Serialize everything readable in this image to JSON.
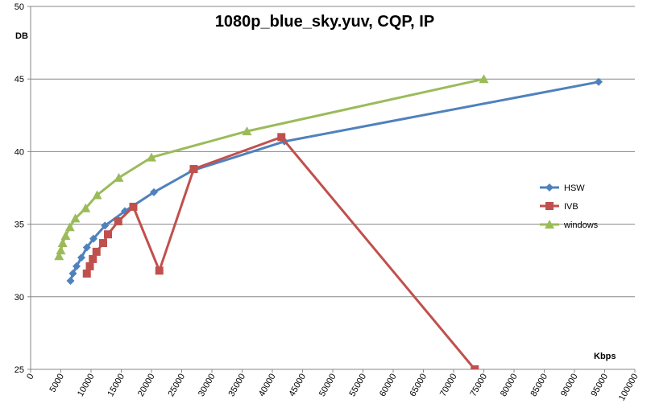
{
  "chart_data": {
    "type": "line",
    "title": "1080p_blue_sky.yuv, CQP, IP",
    "xlabel": "Kbps",
    "ylabel": "DB",
    "xlim": [
      0,
      100000
    ],
    "ylim": [
      25,
      50
    ],
    "xticks": [
      0,
      5000,
      10000,
      15000,
      20000,
      25000,
      30000,
      35000,
      40000,
      45000,
      50000,
      55000,
      60000,
      65000,
      70000,
      75000,
      80000,
      85000,
      90000,
      95000,
      100000
    ],
    "yticks": [
      25,
      30,
      35,
      40,
      45,
      50
    ],
    "grid": "horizontal",
    "legend_position": "right",
    "series": [
      {
        "name": "HSW",
        "color": "#4f81bd",
        "marker": "diamond",
        "points": [
          [
            6600,
            31.1
          ],
          [
            7000,
            31.6
          ],
          [
            7600,
            32.1
          ],
          [
            8400,
            32.7
          ],
          [
            9300,
            33.4
          ],
          [
            10400,
            34.0
          ],
          [
            12300,
            34.9
          ],
          [
            15600,
            35.9
          ],
          [
            20400,
            37.2
          ],
          [
            26800,
            38.7
          ],
          [
            42000,
            40.7
          ],
          [
            94000,
            44.8
          ]
        ]
      },
      {
        "name": "IVB",
        "color": "#c0504d",
        "marker": "square",
        "points": [
          [
            9300,
            31.6
          ],
          [
            9800,
            32.1
          ],
          [
            10300,
            32.6
          ],
          [
            10900,
            33.1
          ],
          [
            12000,
            33.7
          ],
          [
            12800,
            34.3
          ],
          [
            14500,
            35.2
          ],
          [
            17000,
            36.2
          ],
          [
            21300,
            31.8
          ],
          [
            27000,
            38.8
          ],
          [
            41500,
            41.0
          ],
          [
            73500,
            25.0
          ]
        ]
      },
      {
        "name": "windows",
        "color": "#9bbb59",
        "marker": "triangle",
        "points": [
          [
            4700,
            32.8
          ],
          [
            5000,
            33.2
          ],
          [
            5300,
            33.7
          ],
          [
            5800,
            34.2
          ],
          [
            6500,
            34.8
          ],
          [
            7400,
            35.4
          ],
          [
            9100,
            36.1
          ],
          [
            11000,
            37.0
          ],
          [
            14600,
            38.2
          ],
          [
            20000,
            39.6
          ],
          [
            35800,
            41.4
          ],
          [
            75000,
            45.0
          ]
        ]
      }
    ]
  }
}
